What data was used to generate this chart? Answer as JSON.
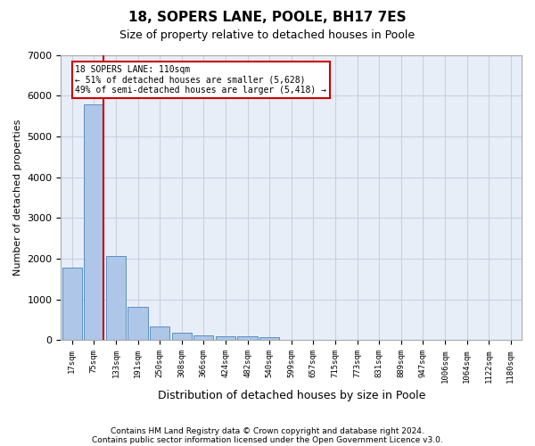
{
  "title1": "18, SOPERS LANE, POOLE, BH17 7ES",
  "title2": "Size of property relative to detached houses in Poole",
  "xlabel": "Distribution of detached houses by size in Poole",
  "ylabel": "Number of detached properties",
  "bin_labels": [
    "17sqm",
    "75sqm",
    "133sqm",
    "191sqm",
    "250sqm",
    "308sqm",
    "366sqm",
    "424sqm",
    "482sqm",
    "540sqm",
    "599sqm",
    "657sqm",
    "715sqm",
    "773sqm",
    "831sqm",
    "889sqm",
    "947sqm",
    "1006sqm",
    "1064sqm",
    "1122sqm",
    "1180sqm"
  ],
  "bar_values": [
    1780,
    5780,
    2060,
    820,
    340,
    190,
    115,
    100,
    85,
    75,
    0,
    0,
    0,
    0,
    0,
    0,
    0,
    0,
    0,
    0,
    0
  ],
  "bar_color": "#aec6e8",
  "bar_edge_color": "#5a8fc2",
  "vline_x": 1.45,
  "annotation_line1": "18 SOPERS LANE: 110sqm",
  "annotation_line2": "← 51% of detached houses are smaller (5,628)",
  "annotation_line3": "49% of semi-detached houses are larger (5,418) →",
  "vline_color": "#cc0000",
  "ylim": [
    0,
    7000
  ],
  "yticks": [
    0,
    1000,
    2000,
    3000,
    4000,
    5000,
    6000,
    7000
  ],
  "footer1": "Contains HM Land Registry data © Crown copyright and database right 2024.",
  "footer2": "Contains public sector information licensed under the Open Government Licence v3.0.",
  "bg_color": "#e8eef8",
  "grid_color": "#c8d0e0"
}
